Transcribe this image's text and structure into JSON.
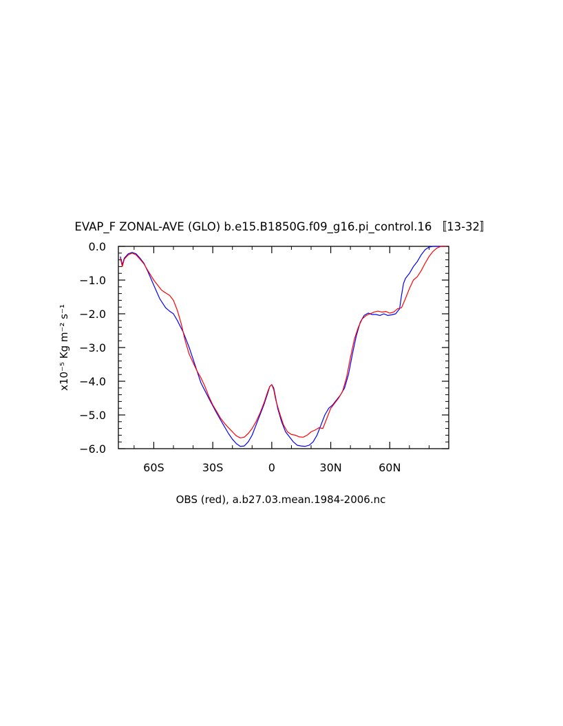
{
  "chart_data": {
    "type": "line",
    "title": "EVAP_F ZONAL-AVE (GLO) b.e15.B1850G.f09_g16.pi_control.16 〚13-32〛",
    "xlabel": "OBS (red), a.b27.03.mean.1984-2006.nc",
    "ylabel": "x10⁻⁵ Kg m⁻² s⁻¹",
    "xlim": [
      -78,
      90
    ],
    "ylim": [
      -6.0,
      0.0
    ],
    "x_ticks": [
      {
        "value": -60,
        "label": "60S"
      },
      {
        "value": -30,
        "label": "30S"
      },
      {
        "value": 0,
        "label": "0"
      },
      {
        "value": 30,
        "label": "30N"
      },
      {
        "value": 60,
        "label": "60N"
      }
    ],
    "y_ticks": [
      {
        "value": 0.0,
        "label": "0.0"
      },
      {
        "value": -1.0,
        "label": "−1.0"
      },
      {
        "value": -2.0,
        "label": "−2.0"
      },
      {
        "value": -3.0,
        "label": "−3.0"
      },
      {
        "value": -4.0,
        "label": "−4.0"
      },
      {
        "value": -5.0,
        "label": "−5.0"
      },
      {
        "value": -6.0,
        "label": "−6.0"
      }
    ],
    "grid": false,
    "colors": {
      "model": "#0000ff",
      "obs": "#ff0000"
    },
    "series": [
      {
        "key": "model",
        "color": "#0000ff",
        "points": [
          [
            -77,
            -0.3
          ],
          [
            -76,
            -0.55
          ],
          [
            -75,
            -0.35
          ],
          [
            -73,
            -0.22
          ],
          [
            -71,
            -0.18
          ],
          [
            -69,
            -0.22
          ],
          [
            -67,
            -0.35
          ],
          [
            -65,
            -0.5
          ],
          [
            -63,
            -0.75
          ],
          [
            -60,
            -1.15
          ],
          [
            -57,
            -1.55
          ],
          [
            -54,
            -1.82
          ],
          [
            -52,
            -1.92
          ],
          [
            -50,
            -2.0
          ],
          [
            -48,
            -2.2
          ],
          [
            -45,
            -2.55
          ],
          [
            -42,
            -3.0
          ],
          [
            -40,
            -3.35
          ],
          [
            -38,
            -3.7
          ],
          [
            -36,
            -4.05
          ],
          [
            -34,
            -4.28
          ],
          [
            -31,
            -4.62
          ],
          [
            -28,
            -4.95
          ],
          [
            -25,
            -5.25
          ],
          [
            -22,
            -5.55
          ],
          [
            -20,
            -5.72
          ],
          [
            -18,
            -5.85
          ],
          [
            -16,
            -5.93
          ],
          [
            -14,
            -5.92
          ],
          [
            -12,
            -5.8
          ],
          [
            -10,
            -5.6
          ],
          [
            -8,
            -5.3
          ],
          [
            -6,
            -5.0
          ],
          [
            -4,
            -4.7
          ],
          [
            -2,
            -4.35
          ],
          [
            -1,
            -4.15
          ],
          [
            0,
            -4.1
          ],
          [
            1,
            -4.2
          ],
          [
            2,
            -4.5
          ],
          [
            3,
            -4.8
          ],
          [
            5,
            -5.2
          ],
          [
            7,
            -5.5
          ],
          [
            9,
            -5.65
          ],
          [
            11,
            -5.8
          ],
          [
            13,
            -5.9
          ],
          [
            15,
            -5.92
          ],
          [
            17,
            -5.93
          ],
          [
            19,
            -5.9
          ],
          [
            21,
            -5.8
          ],
          [
            23,
            -5.6
          ],
          [
            25,
            -5.3
          ],
          [
            27,
            -5.0
          ],
          [
            29,
            -4.8
          ],
          [
            31,
            -4.7
          ],
          [
            33,
            -4.55
          ],
          [
            35,
            -4.4
          ],
          [
            37,
            -4.2
          ],
          [
            39,
            -3.8
          ],
          [
            41,
            -3.2
          ],
          [
            43,
            -2.65
          ],
          [
            45,
            -2.25
          ],
          [
            47,
            -2.05
          ],
          [
            49,
            -1.98
          ],
          [
            51,
            -2.02
          ],
          [
            53,
            -2.02
          ],
          [
            55,
            -2.05
          ],
          [
            57,
            -2.0
          ],
          [
            59,
            -2.05
          ],
          [
            61,
            -2.03
          ],
          [
            63,
            -2.0
          ],
          [
            65,
            -1.85
          ],
          [
            66,
            -1.45
          ],
          [
            67,
            -1.1
          ],
          [
            68,
            -0.95
          ],
          [
            70,
            -0.8
          ],
          [
            72,
            -0.6
          ],
          [
            74,
            -0.45
          ],
          [
            76,
            -0.25
          ],
          [
            78,
            -0.1
          ],
          [
            80,
            -0.02
          ],
          [
            82,
            0.0
          ],
          [
            89,
            0.0
          ]
        ]
      },
      {
        "key": "obs",
        "color": "#ff0000",
        "points": [
          [
            -77,
            -0.35
          ],
          [
            -76,
            -0.6
          ],
          [
            -75,
            -0.38
          ],
          [
            -73,
            -0.25
          ],
          [
            -71,
            -0.2
          ],
          [
            -69,
            -0.25
          ],
          [
            -67,
            -0.38
          ],
          [
            -65,
            -0.52
          ],
          [
            -63,
            -0.72
          ],
          [
            -60,
            -1.0
          ],
          [
            -58,
            -1.15
          ],
          [
            -56,
            -1.3
          ],
          [
            -54,
            -1.38
          ],
          [
            -52,
            -1.45
          ],
          [
            -50,
            -1.6
          ],
          [
            -48,
            -1.9
          ],
          [
            -46,
            -2.3
          ],
          [
            -44,
            -2.8
          ],
          [
            -42,
            -3.2
          ],
          [
            -40,
            -3.45
          ],
          [
            -38,
            -3.7
          ],
          [
            -36,
            -3.9
          ],
          [
            -34,
            -4.15
          ],
          [
            -32,
            -4.45
          ],
          [
            -30,
            -4.7
          ],
          [
            -28,
            -4.9
          ],
          [
            -26,
            -5.1
          ],
          [
            -24,
            -5.25
          ],
          [
            -22,
            -5.38
          ],
          [
            -20,
            -5.5
          ],
          [
            -18,
            -5.62
          ],
          [
            -16,
            -5.68
          ],
          [
            -14,
            -5.66
          ],
          [
            -12,
            -5.55
          ],
          [
            -10,
            -5.4
          ],
          [
            -8,
            -5.2
          ],
          [
            -6,
            -4.95
          ],
          [
            -4,
            -4.65
          ],
          [
            -2,
            -4.3
          ],
          [
            -1,
            -4.15
          ],
          [
            0,
            -4.1
          ],
          [
            1,
            -4.25
          ],
          [
            2,
            -4.55
          ],
          [
            4,
            -4.95
          ],
          [
            6,
            -5.3
          ],
          [
            8,
            -5.5
          ],
          [
            10,
            -5.58
          ],
          [
            12,
            -5.6
          ],
          [
            14,
            -5.65
          ],
          [
            16,
            -5.66
          ],
          [
            18,
            -5.6
          ],
          [
            20,
            -5.5
          ],
          [
            22,
            -5.45
          ],
          [
            24,
            -5.38
          ],
          [
            26,
            -5.4
          ],
          [
            28,
            -5.1
          ],
          [
            30,
            -4.8
          ],
          [
            32,
            -4.65
          ],
          [
            34,
            -4.5
          ],
          [
            36,
            -4.3
          ],
          [
            38,
            -3.9
          ],
          [
            40,
            -3.3
          ],
          [
            42,
            -2.75
          ],
          [
            44,
            -2.4
          ],
          [
            46,
            -2.15
          ],
          [
            48,
            -2.05
          ],
          [
            50,
            -2.0
          ],
          [
            52,
            -1.95
          ],
          [
            54,
            -1.92
          ],
          [
            56,
            -1.95
          ],
          [
            58,
            -1.93
          ],
          [
            60,
            -1.98
          ],
          [
            62,
            -1.95
          ],
          [
            64,
            -1.85
          ],
          [
            66,
            -1.82
          ],
          [
            68,
            -1.55
          ],
          [
            70,
            -1.25
          ],
          [
            72,
            -1.0
          ],
          [
            74,
            -0.9
          ],
          [
            76,
            -0.72
          ],
          [
            78,
            -0.5
          ],
          [
            80,
            -0.3
          ],
          [
            82,
            -0.15
          ],
          [
            84,
            -0.05
          ],
          [
            86,
            0.0
          ],
          [
            89,
            0.0
          ]
        ]
      }
    ]
  }
}
